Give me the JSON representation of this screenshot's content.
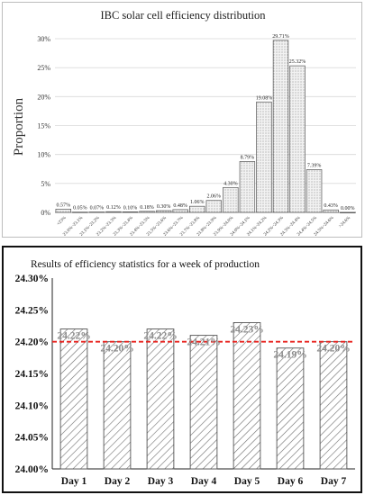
{
  "chart_data": [
    {
      "type": "bar",
      "title": "IBC solar cell efficiency distribution",
      "ylabel": "Proportion",
      "xlabel": "",
      "ylim": [
        0,
        30
      ],
      "yticks": [
        "0%",
        "5%",
        "10%",
        "15%",
        "20%",
        "25%",
        "30%"
      ],
      "categories": [
        "<23%",
        "23.0%~23.1%",
        "23.1%~23.2%",
        "23.2%~23.3%",
        "23.3%~23.4%",
        "23.4%~23.5%",
        "23.5%~23.6%",
        "23.6%~23.7%",
        "23.7%~23.8%",
        "23.8%~23.9%",
        "23.9%~24.0%",
        "24.0%~24.1%",
        "24.1%~24.2%",
        "24.2%~24.3%",
        "24.3%~24.4%",
        "24.4%~24.5%",
        "24.5%~24.6%",
        ">24.6%"
      ],
      "values": [
        0.57,
        0.05,
        0.07,
        0.12,
        0.1,
        0.18,
        0.3,
        0.48,
        1.06,
        2.06,
        4.3,
        8.79,
        19.08,
        29.71,
        25.32,
        7.39,
        0.43,
        0.0
      ],
      "data_labels": [
        "0.57%",
        "0.05%",
        "0.07%",
        "0.12%",
        "0.10%",
        "0.18%",
        "0.30%",
        "0.48%",
        "1.06%",
        "2.06%",
        "4.30%",
        "8.79%",
        "19.08%",
        "29.71%",
        "25.32%",
        "7.39%",
        "0.43%",
        "0.00%"
      ],
      "grid": true,
      "bar_fill": "#e8e8e8"
    },
    {
      "type": "bar",
      "title": "Results of efficiency statistics for a week of production",
      "xlabel": "",
      "ylabel": "",
      "ylim": [
        24.0,
        24.3
      ],
      "yticks": [
        "24.00%",
        "24.05%",
        "24.10%",
        "24.15%",
        "24.20%",
        "24.25%",
        "24.30%"
      ],
      "categories": [
        "Day 1",
        "Day 2",
        "Day 3",
        "Day 4",
        "Day 5",
        "Day 6",
        "Day 7"
      ],
      "values": [
        24.22,
        24.2,
        24.22,
        24.21,
        24.23,
        24.19,
        24.2
      ],
      "data_labels": [
        "24.22%",
        "24.20%",
        "24.22%",
        "24.21%",
        "24.23%",
        "24.19%",
        "24.20%"
      ],
      "reference_line": 24.2,
      "reference_color": "#e8231f",
      "label_color": "#8c8c8c",
      "grid": false
    }
  ]
}
